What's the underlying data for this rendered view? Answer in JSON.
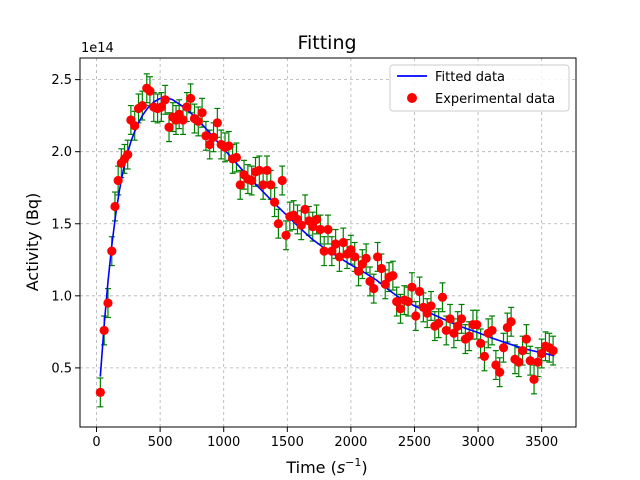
{
  "chart_data": {
    "type": "scatter",
    "title": "Fitting",
    "xlabel_main": "Time (",
    "xlabel_sym": "s",
    "xlabel_exp": "−1",
    "xlabel_close": ")",
    "ylabel": "Activity (Bq)",
    "y_exponent_label": "1e14",
    "xlim": [
      -130,
      3770
    ],
    "ylim": [
      0.09,
      2.65
    ],
    "xticks": [
      0,
      500,
      1000,
      1500,
      2000,
      2500,
      3000,
      3500
    ],
    "yticks": [
      0.5,
      1.0,
      1.5,
      2.0,
      2.5
    ],
    "ytick_labels": [
      "0.5",
      "1.0",
      "1.5",
      "2.0",
      "2.5"
    ],
    "grid": true,
    "legend_position": "top-right",
    "colors": {
      "fit_line": "#0000ff",
      "points": "#ff0000",
      "errorbars": "#008000"
    },
    "series": [
      {
        "name": "Fitted data",
        "kind": "line",
        "x": [
          30,
          60,
          90,
          120,
          150,
          180,
          210,
          240,
          270,
          300,
          330,
          360,
          400,
          450,
          500,
          550,
          600,
          650,
          700,
          800,
          900,
          1000,
          1100,
          1200,
          1300,
          1400,
          1500,
          1600,
          1700,
          1800,
          1900,
          2000,
          2100,
          2200,
          2300,
          2400,
          2500,
          2600,
          2700,
          2800,
          2900,
          3000,
          3100,
          3200,
          3300,
          3400,
          3500,
          3600
        ],
        "y": [
          0.44,
          0.8,
          1.1,
          1.35,
          1.56,
          1.73,
          1.87,
          1.98,
          2.07,
          2.14,
          2.2,
          2.25,
          2.3,
          2.345,
          2.37,
          2.375,
          2.36,
          2.33,
          2.3,
          2.22,
          2.12,
          2.02,
          1.92,
          1.82,
          1.73,
          1.64,
          1.555,
          1.47,
          1.39,
          1.325,
          1.27,
          1.215,
          1.165,
          1.11,
          1.04,
          0.975,
          0.93,
          0.89,
          0.85,
          0.81,
          0.775,
          0.745,
          0.71,
          0.68,
          0.65,
          0.625,
          0.605,
          0.585
        ]
      },
      {
        "name": "Experimental data",
        "kind": "scatter",
        "x": [
          30,
          60,
          90,
          120,
          145,
          170,
          195,
          220,
          245,
          270,
          300,
          330,
          360,
          395,
          420,
          450,
          480,
          510,
          540,
          570,
          600,
          625,
          650,
          680,
          710,
          740,
          770,
          800,
          830,
          860,
          890,
          920,
          950,
          980,
          1010,
          1040,
          1070,
          1100,
          1130,
          1160,
          1190,
          1220,
          1250,
          1280,
          1310,
          1340,
          1370,
          1400,
          1430,
          1460,
          1490,
          1520,
          1550,
          1580,
          1610,
          1640,
          1670,
          1700,
          1730,
          1760,
          1790,
          1820,
          1850,
          1880,
          1910,
          1940,
          1970,
          2000,
          2030,
          2060,
          2090,
          2120,
          2150,
          2180,
          2210,
          2240,
          2270,
          2300,
          2330,
          2360,
          2390,
          2420,
          2450,
          2480,
          2510,
          2540,
          2570,
          2600,
          2630,
          2660,
          2690,
          2720,
          2750,
          2780,
          2810,
          2840,
          2870,
          2900,
          2930,
          2960,
          2990,
          3020,
          3050,
          3080,
          3110,
          3140,
          3170,
          3200,
          3230,
          3260,
          3290,
          3320,
          3350,
          3380,
          3410,
          3440,
          3470,
          3500,
          3530,
          3560,
          3590
        ],
        "y": [
          0.33,
          0.76,
          0.95,
          1.31,
          1.62,
          1.8,
          1.92,
          1.95,
          1.98,
          2.22,
          2.18,
          2.3,
          2.32,
          2.44,
          2.42,
          2.31,
          2.3,
          2.31,
          2.36,
          2.17,
          2.24,
          2.22,
          2.26,
          2.22,
          2.31,
          2.37,
          2.23,
          2.21,
          2.27,
          2.11,
          2.05,
          2.1,
          2.2,
          2.05,
          2.03,
          2.04,
          1.95,
          1.96,
          1.77,
          1.84,
          1.81,
          1.8,
          1.86,
          1.87,
          1.77,
          1.87,
          1.77,
          1.65,
          1.5,
          1.8,
          1.42,
          1.55,
          1.56,
          1.53,
          1.49,
          1.6,
          1.52,
          1.48,
          1.53,
          1.46,
          1.31,
          1.46,
          1.31,
          1.36,
          1.27,
          1.37,
          1.29,
          1.32,
          1.27,
          1.17,
          1.22,
          1.26,
          1.1,
          1.05,
          1.27,
          1.19,
          1.08,
          1.13,
          1.14,
          0.96,
          0.91,
          0.97,
          0.96,
          1.06,
          0.86,
          1.03,
          0.92,
          0.88,
          0.93,
          0.79,
          0.81,
          0.99,
          0.76,
          0.84,
          0.74,
          0.79,
          0.84,
          0.7,
          0.72,
          0.8,
          0.8,
          0.67,
          0.58,
          0.74,
          0.76,
          0.52,
          0.47,
          0.64,
          0.78,
          0.82,
          0.56,
          0.54,
          0.62,
          0.7,
          0.55,
          0.42,
          0.54,
          0.6,
          0.65,
          0.64,
          0.62
        ]
      }
    ],
    "errorbar_half_height": 0.1
  }
}
